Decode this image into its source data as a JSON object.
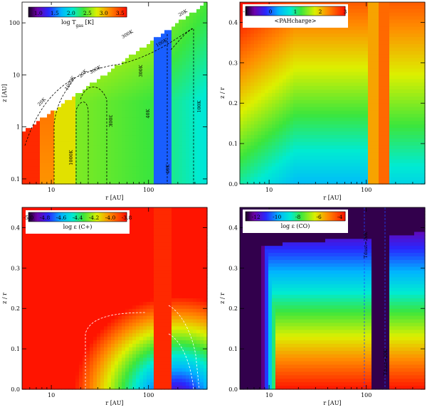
{
  "chart_data": [
    {
      "id": "tgas",
      "type": "heatmap",
      "xlabel": "r [AU]",
      "ylabel": "z [AU]",
      "xscale": "log",
      "yscale": "log",
      "xlim": [
        5,
        400
      ],
      "ylim": [
        0.08,
        250
      ],
      "x_ticks": [
        10,
        100
      ],
      "y_ticks": [
        0.1,
        1,
        10,
        100
      ],
      "x_tick_labels": [
        "10",
        "100"
      ],
      "y_tick_labels": [
        "0.1",
        "1",
        "10",
        "100"
      ],
      "colorbar": {
        "label": "log T",
        "label_sub": "gas",
        "label_unit": "[K]",
        "range": [
          0.7,
          3.7
        ],
        "ticks": [
          1.0,
          1.5,
          2.0,
          2.5,
          3.0,
          3.5
        ],
        "tick_labels": [
          "1.0",
          "1.5",
          "2.0",
          "2.5",
          "3.0",
          "3.5"
        ],
        "colormap": "rainbow"
      },
      "contour_labels": [
        "1000K",
        "1000K",
        "300K",
        "300K",
        "300K",
        "300K",
        "100K",
        "100K",
        "40K",
        "40K",
        "20K",
        "20K",
        "20K"
      ]
    },
    {
      "id": "pah",
      "type": "heatmap",
      "xlabel": "r [AU]",
      "ylabel": "z / r",
      "xscale": "log",
      "xlim": [
        5,
        400
      ],
      "ylim": [
        0,
        0.45
      ],
      "x_ticks": [
        10,
        100
      ],
      "y_ticks": [
        0.0,
        0.1,
        0.2,
        0.3,
        0.4
      ],
      "x_tick_labels": [
        "10",
        "100"
      ],
      "y_tick_labels": [
        "0.0",
        "0.1",
        "0.2",
        "0.3",
        "0.4"
      ],
      "colorbar": {
        "label": "<PAHcharge>",
        "range": [
          -1,
          3
        ],
        "ticks": [
          -1,
          0,
          1,
          2,
          3
        ],
        "tick_labels": [
          "-1",
          "0",
          "1",
          "2",
          "3"
        ],
        "colormap": "rainbow"
      }
    },
    {
      "id": "cplus",
      "type": "heatmap",
      "xlabel": "r [AU]",
      "ylabel": "z / r",
      "xscale": "log",
      "xlim": [
        5,
        400
      ],
      "ylim": [
        0,
        0.45
      ],
      "x_ticks": [
        10,
        100
      ],
      "y_ticks": [
        0.0,
        0.1,
        0.2,
        0.3,
        0.4
      ],
      "x_tick_labels": [
        "10",
        "100"
      ],
      "y_tick_labels": [
        "0.0",
        "0.1",
        "0.2",
        "0.3",
        "0.4"
      ],
      "colorbar": {
        "label": "log ε (C+)",
        "range": [
          -5.0,
          -3.8
        ],
        "ticks": [
          -5.0,
          -4.8,
          -4.6,
          -4.4,
          -4.2,
          -4.0,
          -3.8
        ],
        "tick_labels": [
          "-5.0",
          "-4.8",
          "-4.6",
          "-4.4",
          "-4.2",
          "-4.0",
          "-3.8"
        ],
        "colormap": "rainbow"
      }
    },
    {
      "id": "co",
      "type": "heatmap",
      "xlabel": "r [AU]",
      "ylabel": "z / r",
      "xscale": "log",
      "xlim": [
        5,
        400
      ],
      "ylim": [
        0,
        0.45
      ],
      "x_ticks": [
        10,
        100
      ],
      "y_ticks": [
        0.0,
        0.1,
        0.2,
        0.3,
        0.4
      ],
      "x_tick_labels": [
        "10",
        "100"
      ],
      "y_tick_labels": [
        "0.0",
        "0.1",
        "0.2",
        "0.3",
        "0.4"
      ],
      "colorbar": {
        "label": "log ε (CO)",
        "range": [
          -13,
          -3.5
        ],
        "ticks": [
          -12,
          -10,
          -8,
          -6,
          -4
        ],
        "tick_labels": [
          "-12",
          "-10",
          "-8",
          "-6",
          "-4"
        ],
        "colormap": "rainbow"
      },
      "contour_labels": [
        "Tdust=20K",
        "Tdust=20K"
      ]
    }
  ]
}
